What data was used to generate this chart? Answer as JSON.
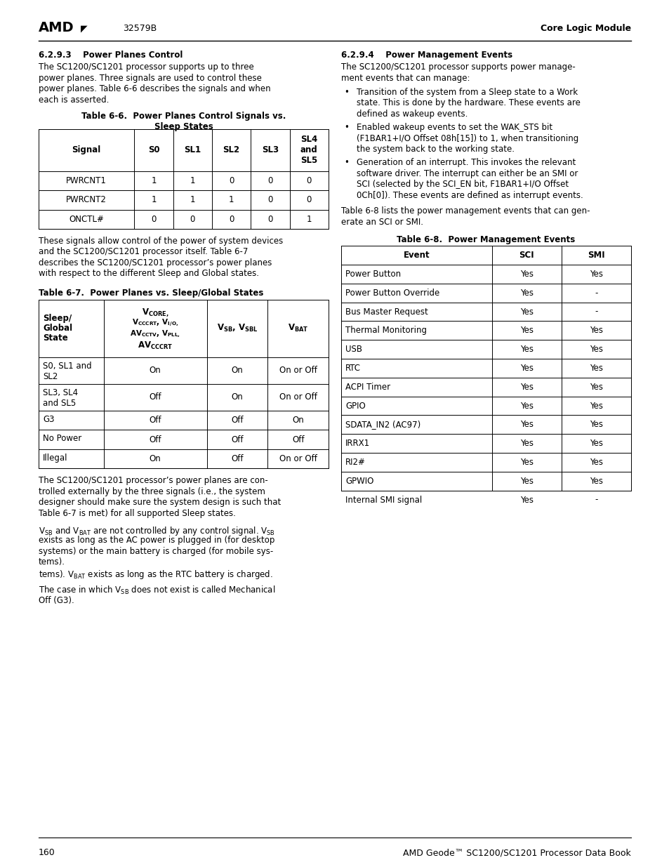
{
  "page_width": 9.54,
  "page_height": 12.35,
  "bg_color": "#ffffff",
  "header": {
    "amd_text": "AMD",
    "doc_num": "32579B",
    "right_text": "Core Logic Module"
  },
  "footer": {
    "left_text": "160",
    "right_text": "AMD Geode™ SC1200/SC1201 Processor Data Book"
  },
  "section_623": {
    "title": "6.2.9.3    Power Planes Control",
    "body_lines": [
      "The SC1200/SC1201 processor supports up to three",
      "power planes. Three signals are used to control these",
      "power planes. Table 6-6 describes the signals and when",
      "each is asserted."
    ]
  },
  "section_624": {
    "title": "6.2.9.4    Power Management Events",
    "body_lines": [
      "The SC1200/SC1201 processor supports power manage-",
      "ment events that can manage:"
    ],
    "bullets": [
      [
        "Transition of the system from a Sleep state to a Work",
        "state. This is done by the hardware. These events are",
        "defined as wakeup events."
      ],
      [
        "Enabled wakeup events to set the WAK_STS bit",
        "(F1BAR1+I/O Offset 08h[15]) to 1, when transitioning",
        "the system back to the working state."
      ],
      [
        "Generation of an interrupt. This invokes the relevant",
        "software driver. The interrupt can either be an SMI or",
        "SCI (selected by the SCI_EN bit, F1BAR1+I/O Offset",
        "0Ch[0]). These events are defined as interrupt events."
      ]
    ],
    "tail_lines": [
      "Table 6-8 lists the power management events that can gen-",
      "erate an SCI or SMI."
    ]
  },
  "table66": {
    "title_line1": "Table 6-6.  Power Planes Control Signals vs.",
    "title_line2": "Sleep States",
    "col_headers": [
      "Signal",
      "S0",
      "SL1",
      "SL2",
      "SL3",
      "SL4\nand\nSL5"
    ],
    "rows": [
      [
        "PWRCNT1",
        "1",
        "1",
        "0",
        "0",
        "0"
      ],
      [
        "PWRCNT2",
        "1",
        "1",
        "1",
        "0",
        "0"
      ],
      [
        "ONCTL#",
        "0",
        "0",
        "0",
        "0",
        "1"
      ]
    ]
  },
  "mid_text_lines": [
    "These signals allow control of the power of system devices",
    "and the SC1200/SC1201 processor itself. Table 6-7",
    "describes the SC1200/SC1201 processor’s power planes",
    "with respect to the different Sleep and Global states."
  ],
  "table67": {
    "title": "Table 6-7.  Power Planes vs. Sleep/Global States",
    "rows": [
      [
        "S0, SL1 and\nSL2",
        "On",
        "On",
        "On or Off"
      ],
      [
        "SL3, SL4\nand SL5",
        "Off",
        "On",
        "On or Off"
      ],
      [
        "G3",
        "Off",
        "Off",
        "On"
      ],
      [
        "No Power",
        "Off",
        "Off",
        "Off"
      ],
      [
        "Illegal",
        "On",
        "Off",
        "On or Off"
      ]
    ]
  },
  "table68": {
    "title": "Table 6-8.  Power Management Events",
    "col_headers": [
      "Event",
      "SCI",
      "SMI"
    ],
    "rows": [
      [
        "Power Button",
        "Yes",
        "Yes"
      ],
      [
        "Power Button Override",
        "Yes",
        "-"
      ],
      [
        "Bus Master Request",
        "Yes",
        "-"
      ],
      [
        "Thermal Monitoring",
        "Yes",
        "Yes"
      ],
      [
        "USB",
        "Yes",
        "Yes"
      ],
      [
        "RTC",
        "Yes",
        "Yes"
      ],
      [
        "ACPI Timer",
        "Yes",
        "Yes"
      ],
      [
        "GPIO",
        "Yes",
        "Yes"
      ],
      [
        "SDATA_IN2 (AC97)",
        "Yes",
        "Yes"
      ],
      [
        "IRRX1",
        "Yes",
        "Yes"
      ],
      [
        "RI2#",
        "Yes",
        "Yes"
      ],
      [
        "GPWIO",
        "Yes",
        "Yes"
      ],
      [
        "Internal SMI signal",
        "Yes",
        "-"
      ]
    ]
  },
  "bottom_text1_lines": [
    "The SC1200/SC1201 processor’s power planes are con-",
    "trolled externally by the three signals (i.e., the system",
    "designer should make sure the system design is such that",
    "Table 6-7 is met) for all supported Sleep states."
  ],
  "bottom_text2_lines": [
    "exists as long as the AC power is plugged in (for desktop",
    "systems) or the main battery is charged (for mobile sys-",
    "tems)."
  ],
  "bottom_text3_lines": [
    "Off (G3)."
  ]
}
